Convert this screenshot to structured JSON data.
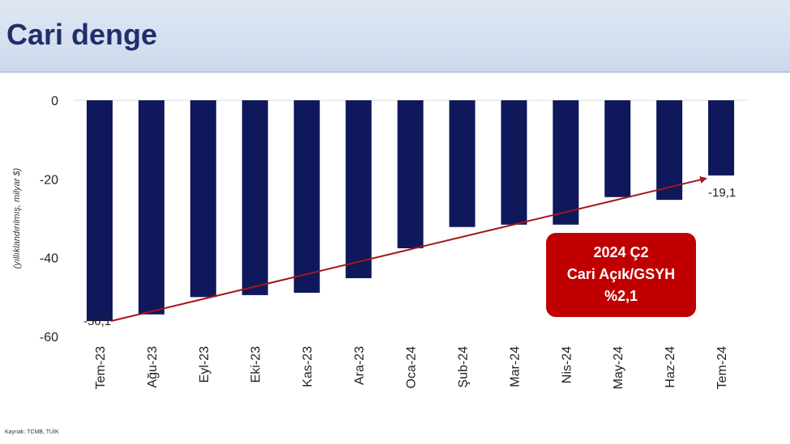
{
  "header": {
    "title": "Cari denge"
  },
  "source": "Kaynak: TCMB, TÜİK",
  "colors": {
    "bar": "#10185c",
    "trend": "#a4161a",
    "callout": "#c00000",
    "grid": "#d9d9d9"
  },
  "chart_data": {
    "type": "bar",
    "ylabel": "(yıllıklandırılmış, milyar $)",
    "ylim": [
      -60,
      0
    ],
    "yticks": [
      0,
      -20,
      -40,
      -60
    ],
    "categories": [
      "Tem-23",
      "Ağu-23",
      "Eyl-23",
      "Eki-23",
      "Kas-23",
      "Ara-23",
      "Oca-24",
      "Şub-24",
      "Mar-24",
      "Nis-24",
      "May-24",
      "Haz-24",
      "Tem-24"
    ],
    "values": [
      -56.1,
      -54.4,
      -50.0,
      -49.5,
      -48.9,
      -45.2,
      -37.6,
      -32.2,
      -31.6,
      -31.6,
      -24.6,
      -25.3,
      -19.1
    ],
    "data_labels": [
      {
        "category": "Tem-23",
        "text": "-56,1"
      },
      {
        "category": "Tem-24",
        "text": "-19,1"
      }
    ],
    "trend_line": {
      "from": "Tem-23",
      "to": "Tem-24"
    },
    "callout": {
      "lines": [
        "2024 Ç2",
        "Cari Açık/GSYH",
        "%2,1"
      ]
    }
  }
}
